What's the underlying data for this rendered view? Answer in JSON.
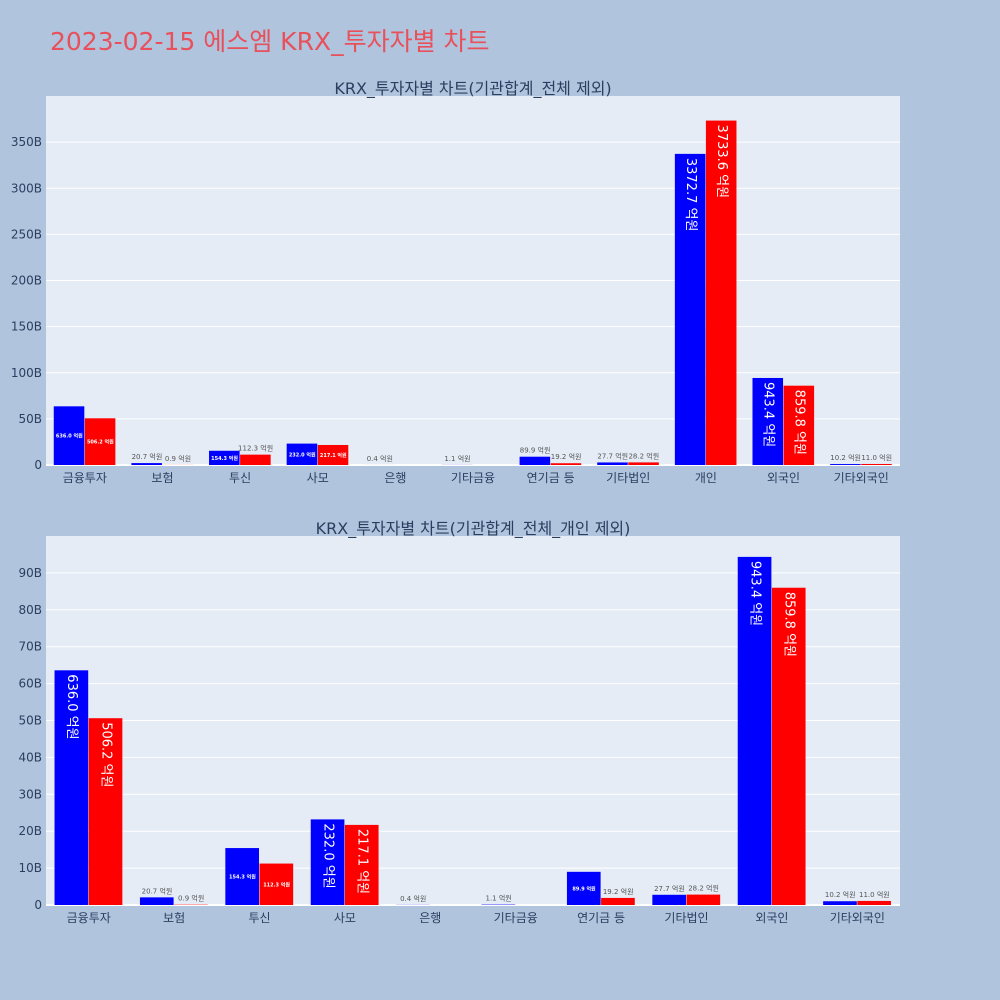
{
  "title": "2023-02-15 에스엠 KRX_투자자별 차트",
  "colors": {
    "series_a": "#0000ff",
    "series_b": "#ff0000",
    "plot_bg": "#e5ecf6",
    "page_bg": "#b0c4de",
    "title": "#e8505b"
  },
  "chart_data": [
    {
      "type": "bar",
      "title": "KRX_투자자별 차트(기관합계_전체 제외)",
      "categories": [
        "금융투자",
        "보험",
        "투신",
        "사모",
        "은행",
        "기타금융",
        "연기금 등",
        "기타법인",
        "개인",
        "외국인",
        "기타외국인"
      ],
      "series": [
        {
          "values": [
            63.6,
            2.07,
            15.43,
            23.2,
            0.04,
            0.11,
            8.99,
            2.77,
            337.27,
            94.34,
            1.02
          ],
          "labels": [
            "636.0 억원",
            "20.7 억원",
            "154.3 억원",
            "232.0 억원",
            "0.4 억원",
            "1.1 억원",
            "89.9 억원",
            "27.7 억원",
            "3372.7 억원",
            "943.4 억원",
            "10.2 억원"
          ]
        },
        {
          "values": [
            50.62,
            0.09,
            11.23,
            21.71,
            0,
            0,
            1.92,
            2.82,
            373.36,
            85.98,
            1.1
          ],
          "labels": [
            "506.2 억원",
            "0.9 억원",
            "112.3 억원",
            "217.1 억원",
            "",
            "",
            "19.2 억원",
            "28.2 억원",
            "3733.6 억원",
            "859.8 억원",
            "11.0 억원"
          ]
        }
      ],
      "ylim": [
        0,
        400
      ],
      "yticks": [
        0,
        50,
        100,
        150,
        200,
        250,
        300,
        350
      ],
      "ytick_labels": [
        "0",
        "50B",
        "100B",
        "150B",
        "200B",
        "250B",
        "300B",
        "350B"
      ],
      "grid": true,
      "legend": "none"
    },
    {
      "type": "bar",
      "title": "KRX_투자자별 차트(기관합계_전체_개인 제외)",
      "categories": [
        "금융투자",
        "보험",
        "투신",
        "사모",
        "은행",
        "기타금융",
        "연기금 등",
        "기타법인",
        "외국인",
        "기타외국인"
      ],
      "series": [
        {
          "values": [
            63.6,
            2.07,
            15.43,
            23.2,
            0.04,
            0.11,
            8.99,
            2.77,
            94.34,
            1.02
          ],
          "labels": [
            "636.0 억원",
            "20.7 억원",
            "154.3 억원",
            "232.0 억원",
            "0.4 억원",
            "1.1 억원",
            "89.9 억원",
            "27.7 억원",
            "943.4 억원",
            "10.2 억원"
          ]
        },
        {
          "values": [
            50.62,
            0.09,
            11.23,
            21.71,
            0,
            0,
            1.92,
            2.82,
            85.98,
            1.1
          ],
          "labels": [
            "506.2 억원",
            "0.9 억원",
            "112.3 억원",
            "217.1 억원",
            "",
            "",
            "19.2 억원",
            "28.2 억원",
            "859.8 억원",
            "11.0 억원"
          ]
        }
      ],
      "ylim": [
        0,
        100
      ],
      "yticks": [
        0,
        10,
        20,
        30,
        40,
        50,
        60,
        70,
        80,
        90
      ],
      "ytick_labels": [
        "0",
        "10B",
        "20B",
        "30B",
        "40B",
        "50B",
        "60B",
        "70B",
        "80B",
        "90B"
      ],
      "grid": true,
      "legend": "none"
    }
  ]
}
